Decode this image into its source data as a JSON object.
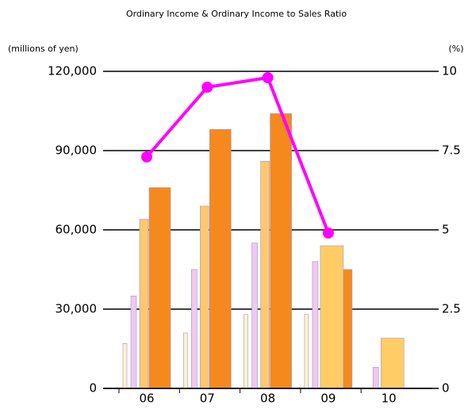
{
  "chart_data": {
    "type": "bar",
    "title": "Ordinary Income & Ordinary Income to Sales Ratio",
    "y_label": "(millions of yen)",
    "y2_label": "(%)",
    "categories": [
      "06",
      "07",
      "08",
      "09",
      "10"
    ],
    "series": [
      {
        "color": "#fff2cc",
        "values": [
          17000,
          21000,
          28000,
          28000,
          null
        ]
      },
      {
        "color": "#f0c8f0",
        "values": [
          35000,
          45000,
          55000,
          48000,
          8000
        ]
      },
      {
        "color": "#ffc86e",
        "values": [
          64000,
          69000,
          86000,
          null,
          null
        ]
      },
      {
        "color": "#f5891e",
        "values": [
          76000,
          98000,
          104000,
          45000,
          null
        ]
      },
      {
        "color": "#ffcc66",
        "values": [
          null,
          null,
          null,
          54000,
          19000
        ]
      },
      {
        "type": "line",
        "axis": "y2",
        "color": "#ff00ff",
        "values": [
          7.3,
          9.5,
          9.8,
          4.9,
          null
        ]
      }
    ],
    "ylim": [
      0,
      120000
    ],
    "yticks": [
      0,
      {
        "value": 30000,
        "label": "30,000"
      },
      {
        "value": 60000,
        "label": "60,000"
      },
      {
        "value": 90000,
        "label": "90,000"
      },
      {
        "value": 120000,
        "label": "120,000"
      }
    ],
    "y2lim": [
      0,
      10
    ],
    "y2ticks": [
      0,
      2.5,
      5,
      7.5,
      10
    ],
    "grid": true
  }
}
